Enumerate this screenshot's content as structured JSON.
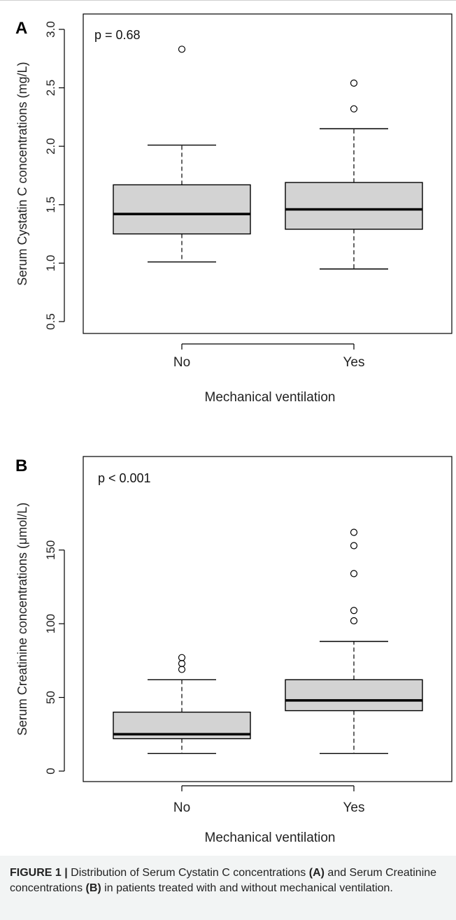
{
  "chart_data": [
    {
      "type": "box",
      "panel_label": "A",
      "annotation": "p = 0.68",
      "xlabel": "Mechanical ventilation",
      "ylabel": "Serum Cystatin C concentrations (mg/L)",
      "ylim": [
        0.5,
        3.0
      ],
      "yticks": [
        0.5,
        1.0,
        1.5,
        2.0,
        2.5,
        3.0
      ],
      "ytick_labels": [
        "0.5",
        "1.0",
        "1.5",
        "2.0",
        "2.5",
        "3.0"
      ],
      "categories": [
        "No",
        "Yes"
      ],
      "boxes": [
        {
          "category": "No",
          "whisker_low": 1.01,
          "q1": 1.25,
          "median": 1.42,
          "q3": 1.67,
          "whisker_high": 2.01,
          "outliers": [
            2.83
          ]
        },
        {
          "category": "Yes",
          "whisker_low": 0.95,
          "q1": 1.29,
          "median": 1.46,
          "q3": 1.69,
          "whisker_high": 2.15,
          "outliers": [
            2.32,
            2.54
          ]
        }
      ],
      "grid": false,
      "box_fill": "#d3d3d3"
    },
    {
      "type": "box",
      "panel_label": "B",
      "annotation": "p < 0.001",
      "xlabel": "Mechanical ventilation",
      "ylabel": "Serum Creatinine concentrations (μmol/L)",
      "ylim": [
        0,
        160
      ],
      "yticks": [
        0,
        50,
        100,
        150
      ],
      "ytick_labels": [
        "0",
        "50",
        "100",
        "150"
      ],
      "categories": [
        "No",
        "Yes"
      ],
      "boxes": [
        {
          "category": "No",
          "whisker_low": 12,
          "q1": 22,
          "median": 25,
          "q3": 40,
          "whisker_high": 62,
          "outliers": [
            69,
            73,
            77
          ]
        },
        {
          "category": "Yes",
          "whisker_low": 12,
          "q1": 41,
          "median": 48,
          "q3": 62,
          "whisker_high": 88,
          "outliers": [
            102,
            109,
            134,
            153,
            162
          ]
        }
      ],
      "grid": false,
      "box_fill": "#d3d3d3"
    }
  ],
  "caption": {
    "figure_label": "FIGURE 1 |",
    "part1": " Distribution of Serum Cystatin C concentrations ",
    "tagA": "(A)",
    "part2": " and Serum Creatinine concentrations ",
    "tagB": "(B)",
    "part3": " in patients treated with and without mechanical ventilation."
  }
}
